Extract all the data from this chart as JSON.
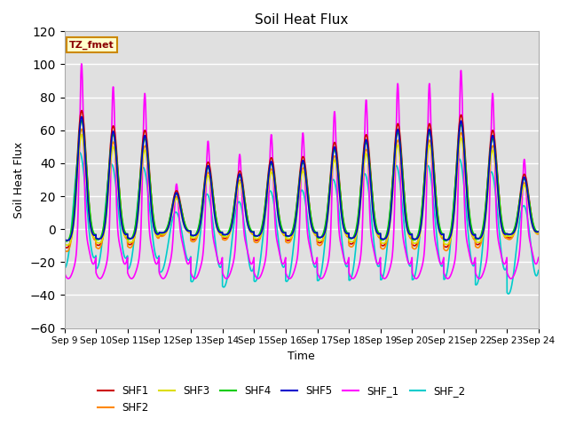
{
  "title": "Soil Heat Flux",
  "xlabel": "Time",
  "ylabel": "Soil Heat Flux",
  "ylim": [
    -60,
    120
  ],
  "yticks": [
    -60,
    -40,
    -20,
    0,
    20,
    40,
    60,
    80,
    100,
    120
  ],
  "colors": {
    "SHF1": "#cc0000",
    "SHF2": "#ff8800",
    "SHF3": "#dddd00",
    "SHF4": "#00cc00",
    "SHF5": "#0000cc",
    "SHF_1": "#ff00ff",
    "SHF_2": "#00cccc"
  },
  "legend_box_text": "TZ_fmet",
  "legend_box_bg": "#ffffcc",
  "legend_box_border": "#cc8800",
  "bg_color": "#e0e0e0",
  "linewidth": 1.2,
  "n_days": 15,
  "dt": 0.1,
  "peak_hours_shf12345": 13,
  "peak_hour_shf_1": 13,
  "peak_hour_shf_2": 11
}
